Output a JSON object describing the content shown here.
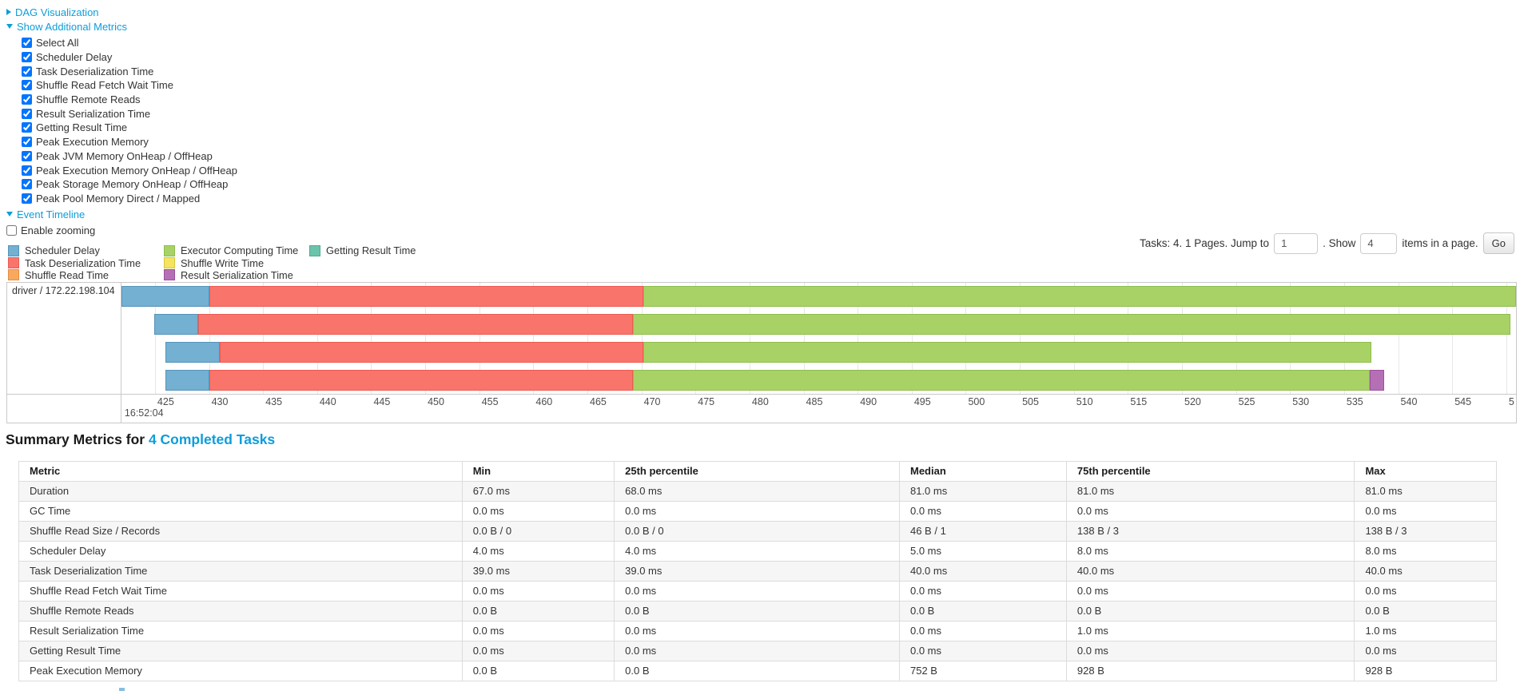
{
  "colors": {
    "link": "#0d9dda",
    "grid": "#e7e7e7",
    "chart_border": "#c9c9c9",
    "table_border": "#dcdcdc",
    "stripe": "#f6f6f6"
  },
  "controls": {
    "dag_link": "DAG Visualization",
    "metrics_link": "Show Additional Metrics",
    "checkboxes": [
      {
        "label": "Select All",
        "checked": true
      },
      {
        "label": "Scheduler Delay",
        "checked": true
      },
      {
        "label": "Task Deserialization Time",
        "checked": true
      },
      {
        "label": "Shuffle Read Fetch Wait Time",
        "checked": true
      },
      {
        "label": "Shuffle Remote Reads",
        "checked": true
      },
      {
        "label": "Result Serialization Time",
        "checked": true
      },
      {
        "label": "Getting Result Time",
        "checked": true
      },
      {
        "label": "Peak Execution Memory",
        "checked": true
      },
      {
        "label": "Peak JVM Memory OnHeap / OffHeap",
        "checked": true
      },
      {
        "label": "Peak Execution Memory OnHeap / OffHeap",
        "checked": true
      },
      {
        "label": "Peak Storage Memory OnHeap / OffHeap",
        "checked": true
      },
      {
        "label": "Peak Pool Memory Direct / Mapped",
        "checked": true
      }
    ],
    "timeline_link": "Event Timeline",
    "enable_zooming_label": "Enable zooming",
    "enable_zooming_checked": false
  },
  "legend": {
    "items": [
      {
        "label": "Scheduler Delay",
        "key": "scheduler_delay",
        "fill": "#73B0D1",
        "border": "#5693BA",
        "col": 0
      },
      {
        "label": "Task Deserialization Time",
        "key": "task_deserialization",
        "fill": "#F9756C",
        "border": "#ED5A52",
        "col": 0
      },
      {
        "label": "Shuffle Read Time",
        "key": "shuffle_read",
        "fill": "#F8A95E",
        "border": "#E58E3F",
        "col": 0
      },
      {
        "label": "Executor Computing Time",
        "key": "executor_computing",
        "fill": "#A8D266",
        "border": "#8FBD4C",
        "col": 1
      },
      {
        "label": "Shuffle Write Time",
        "key": "shuffle_write",
        "fill": "#F4E45F",
        "border": "#D8C73F",
        "col": 1
      },
      {
        "label": "Result Serialization Time",
        "key": "result_serialization",
        "fill": "#B570B5",
        "border": "#9D4F9D",
        "col": 1
      },
      {
        "label": "Getting Result Time",
        "key": "getting_result",
        "fill": "#6AC3AB",
        "border": "#50A98F",
        "col": 2
      }
    ]
  },
  "pagination": {
    "tasks_text": "Tasks: 4. 1 Pages. Jump to",
    "jump_value": "1",
    "show_text": ". Show",
    "show_value": "4",
    "items_text": "items in a page.",
    "go_label": "Go"
  },
  "chart_data": {
    "type": "timeline",
    "group_label": "driver / 172.22.198.104",
    "time_label": "16:52:04",
    "axis": {
      "min": 421.9,
      "max": 550.9,
      "ticks": [
        425,
        430,
        435,
        440,
        445,
        450,
        455,
        460,
        465,
        470,
        475,
        480,
        485,
        490,
        495,
        500,
        505,
        510,
        515,
        520,
        525,
        530,
        535,
        540,
        545
      ],
      "cut_tick_time": 550,
      "cut_tick_label": "5"
    },
    "tasks": [
      {
        "segments": [
          {
            "metric": "scheduler_delay",
            "start": 421.9,
            "end": 430.0
          },
          {
            "metric": "task_deserialization",
            "start": 430.0,
            "end": 470.2
          },
          {
            "metric": "executor_computing",
            "start": 470.2,
            "end": 550.9
          }
        ]
      },
      {
        "segments": [
          {
            "metric": "scheduler_delay",
            "start": 424.9,
            "end": 429.0
          },
          {
            "metric": "task_deserialization",
            "start": 429.0,
            "end": 469.2
          },
          {
            "metric": "executor_computing",
            "start": 469.2,
            "end": 550.4
          }
        ]
      },
      {
        "segments": [
          {
            "metric": "scheduler_delay",
            "start": 426.0,
            "end": 431.0
          },
          {
            "metric": "task_deserialization",
            "start": 431.0,
            "end": 470.2
          },
          {
            "metric": "executor_computing",
            "start": 470.2,
            "end": 537.5
          }
        ]
      },
      {
        "segments": [
          {
            "metric": "scheduler_delay",
            "start": 426.0,
            "end": 430.0
          },
          {
            "metric": "task_deserialization",
            "start": 430.0,
            "end": 469.2
          },
          {
            "metric": "executor_computing",
            "start": 469.2,
            "end": 537.4
          },
          {
            "metric": "result_serialization",
            "start": 537.4,
            "end": 538.7
          }
        ]
      }
    ]
  },
  "summary": {
    "heading_prefix": "Summary Metrics for ",
    "heading_link": "4 Completed Tasks",
    "table": {
      "columns": [
        "Metric",
        "Min",
        "25th percentile",
        "Median",
        "75th percentile",
        "Max"
      ],
      "rows": [
        [
          "Duration",
          "67.0 ms",
          "68.0 ms",
          "81.0 ms",
          "81.0 ms",
          "81.0 ms"
        ],
        [
          "GC Time",
          "0.0 ms",
          "0.0 ms",
          "0.0 ms",
          "0.0 ms",
          "0.0 ms"
        ],
        [
          "Shuffle Read Size / Records",
          "0.0 B / 0",
          "0.0 B / 0",
          "46 B / 1",
          "138 B / 3",
          "138 B / 3"
        ],
        [
          "Scheduler Delay",
          "4.0 ms",
          "4.0 ms",
          "5.0 ms",
          "8.0 ms",
          "8.0 ms"
        ],
        [
          "Task Deserialization Time",
          "39.0 ms",
          "39.0 ms",
          "40.0 ms",
          "40.0 ms",
          "40.0 ms"
        ],
        [
          "Shuffle Read Fetch Wait Time",
          "0.0 ms",
          "0.0 ms",
          "0.0 ms",
          "0.0 ms",
          "0.0 ms"
        ],
        [
          "Shuffle Remote Reads",
          "0.0 B",
          "0.0 B",
          "0.0 B",
          "0.0 B",
          "0.0 B"
        ],
        [
          "Result Serialization Time",
          "0.0 ms",
          "0.0 ms",
          "0.0 ms",
          "1.0 ms",
          "1.0 ms"
        ],
        [
          "Getting Result Time",
          "0.0 ms",
          "0.0 ms",
          "0.0 ms",
          "0.0 ms",
          "0.0 ms"
        ],
        [
          "Peak Execution Memory",
          "0.0 B",
          "0.0 B",
          "752 B",
          "928 B",
          "928 B"
        ]
      ]
    }
  }
}
